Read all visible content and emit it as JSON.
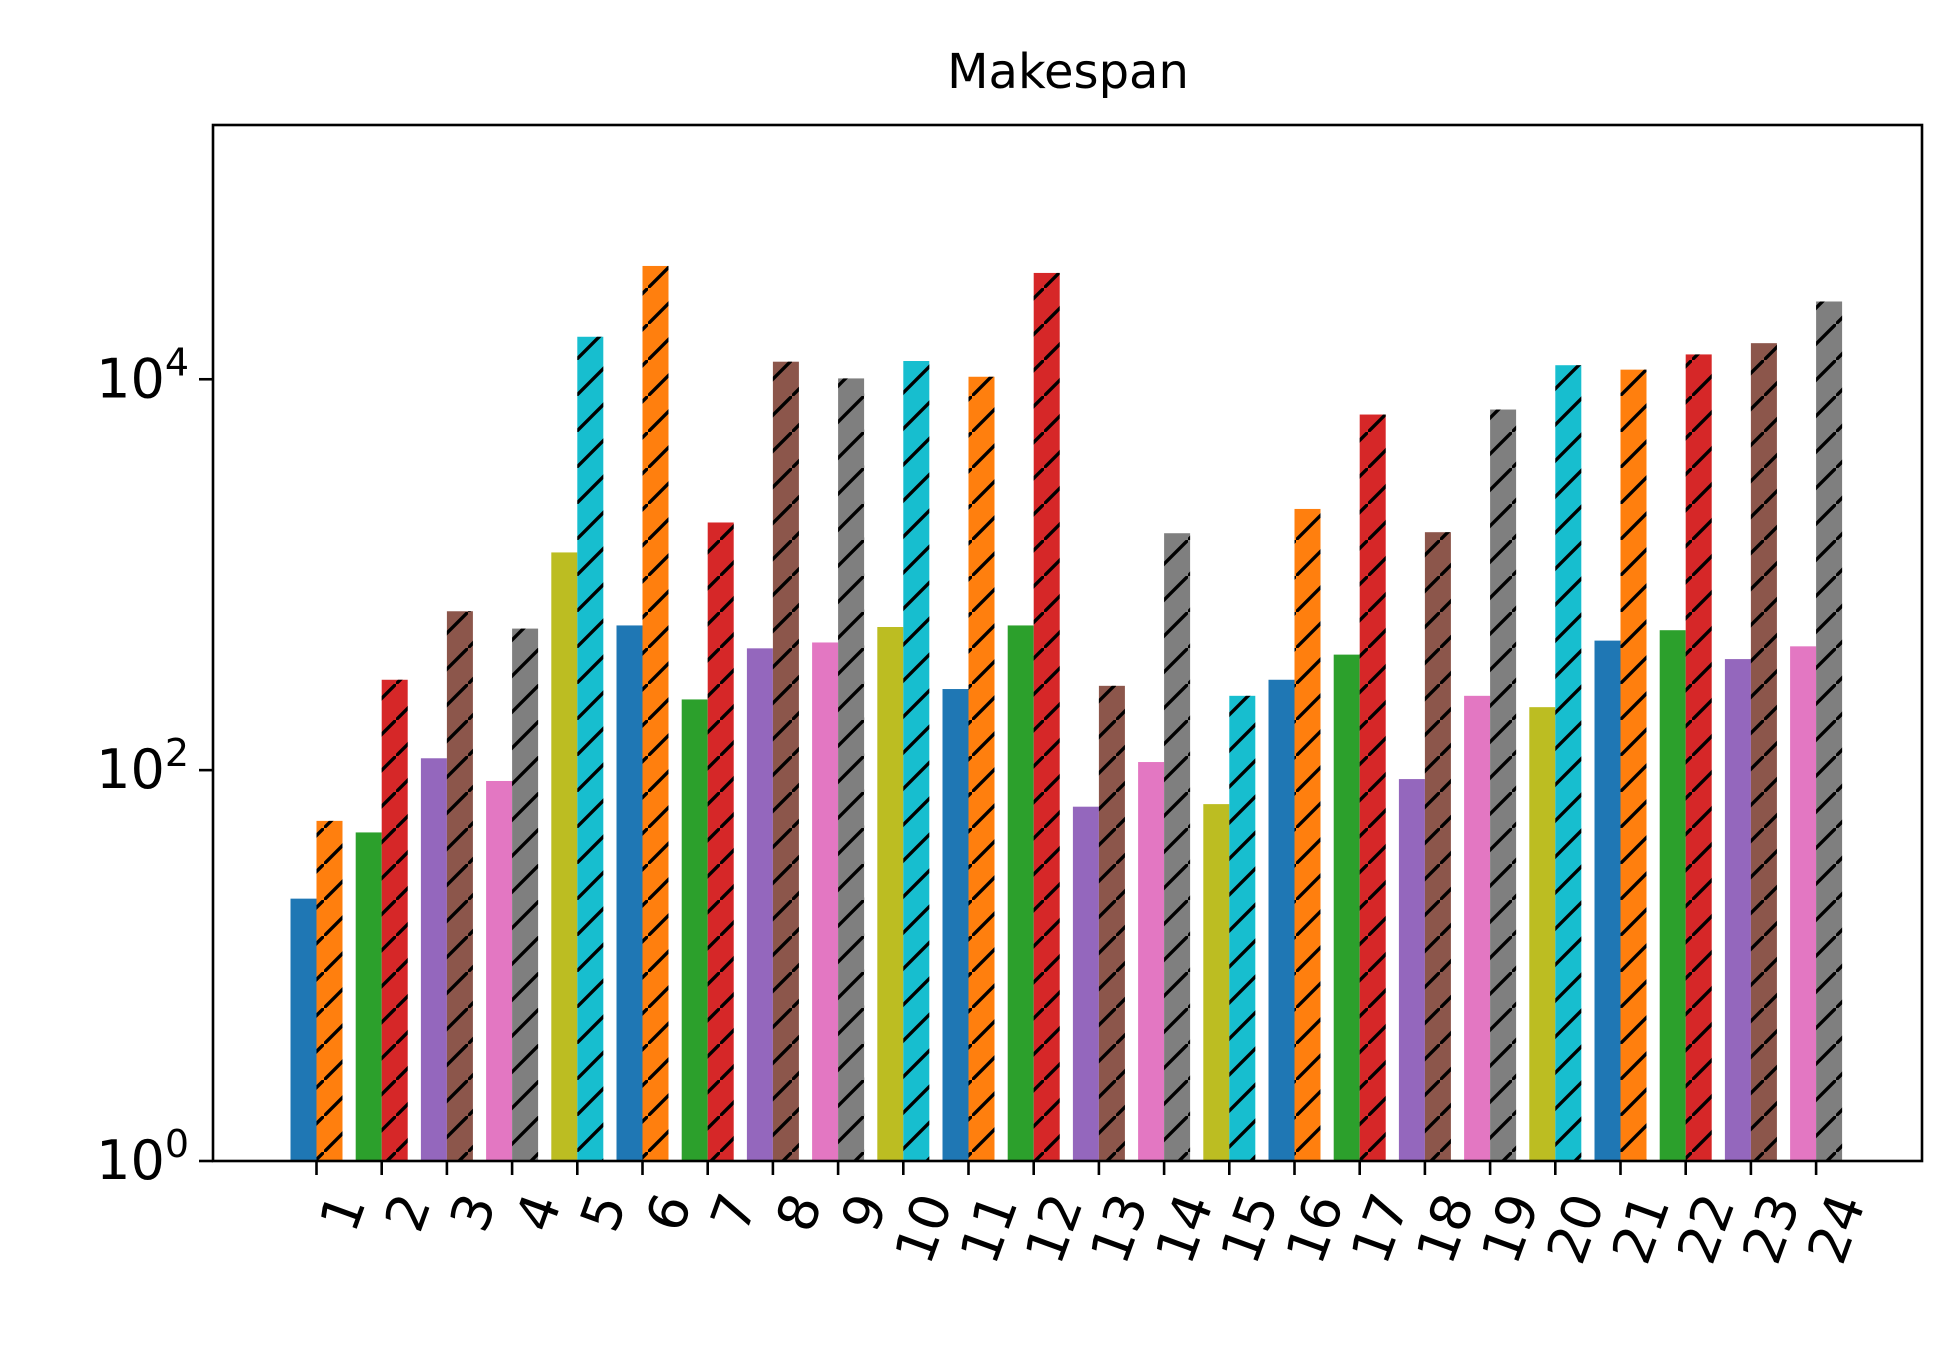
{
  "chart_data": {
    "type": "bar",
    "title": "Makespan",
    "xlabel": "",
    "ylabel": "",
    "yscale": "log",
    "ylim": [
      1,
      200000
    ],
    "y_ticks": [
      {
        "value": 1,
        "base": "10",
        "exp": "0"
      },
      {
        "value": 100,
        "base": "10",
        "exp": "2"
      },
      {
        "value": 10000,
        "base": "10",
        "exp": "4"
      }
    ],
    "grid": false,
    "legend": "none",
    "categories": [
      "1",
      "2",
      "3",
      "4",
      "5",
      "6",
      "7",
      "8",
      "9",
      "10",
      "11",
      "12",
      "13",
      "14",
      "15",
      "16",
      "17",
      "18",
      "19",
      "20",
      "21",
      "22",
      "23",
      "24"
    ],
    "series": [
      {
        "hatch": false,
        "values": [
          22,
          48,
          115,
          88,
          1300,
          550,
          230,
          420,
          450,
          540,
          260,
          550,
          65,
          110,
          67,
          290,
          390,
          90,
          240,
          210,
          460,
          520,
          370,
          430
        ]
      },
      {
        "hatch": true,
        "values": [
          55,
          290,
          650,
          530,
          16500,
          38000,
          1850,
          12300,
          10100,
          12400,
          10300,
          35000,
          270,
          1630,
          240,
          2170,
          6600,
          1650,
          7000,
          11800,
          11200,
          13400,
          15300,
          25000
        ]
      }
    ],
    "bar_colors": [
      "#1f77b4",
      "#ff7f0e",
      "#2ca02c",
      "#d62728",
      "#9467bd",
      "#8c564b",
      "#e377c2",
      "#7f7f7f",
      "#bcbd22",
      "#17becf"
    ],
    "hatch_color": "#000000"
  }
}
